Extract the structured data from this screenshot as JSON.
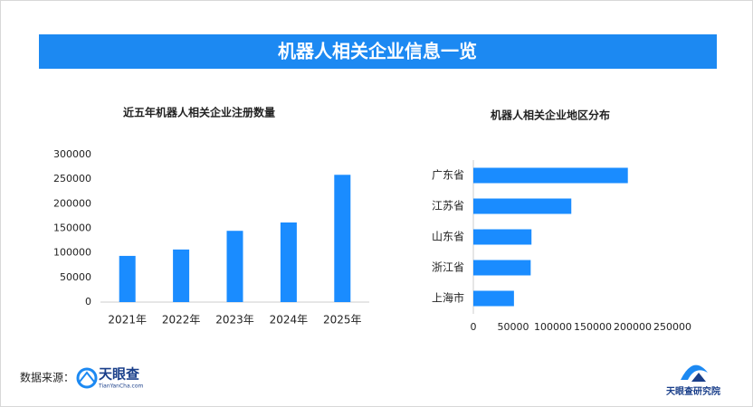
{
  "header": {
    "title": "机器人相关企业信息一览"
  },
  "chart_data": [
    {
      "type": "bar",
      "title": "近五年机器人相关企业注册数量",
      "categories": [
        "2021年",
        "2022年",
        "2023年",
        "2024年",
        "2025年"
      ],
      "values": [
        94000,
        107000,
        145000,
        162000,
        259000
      ],
      "color": "#1a8cff",
      "ylim": [
        0,
        300000
      ],
      "yticks": [
        0,
        50000,
        100000,
        150000,
        200000,
        250000,
        300000
      ]
    },
    {
      "type": "barh",
      "title": "机器人相关企业地区分布",
      "categories": [
        "广东省",
        "江苏省",
        "山东省",
        "浙江省",
        "上海市"
      ],
      "values": [
        194000,
        123000,
        73000,
        72000,
        51000
      ],
      "color": "#1a8cff",
      "xlim": [
        0,
        250000
      ],
      "xticks": [
        0,
        50000,
        100000,
        150000,
        200000,
        250000
      ]
    }
  ],
  "footer": {
    "source_label": "数据来源：",
    "logo_text": "天眼查",
    "logo_url": "TianYanCha.com",
    "institute": "天眼查研究院"
  }
}
